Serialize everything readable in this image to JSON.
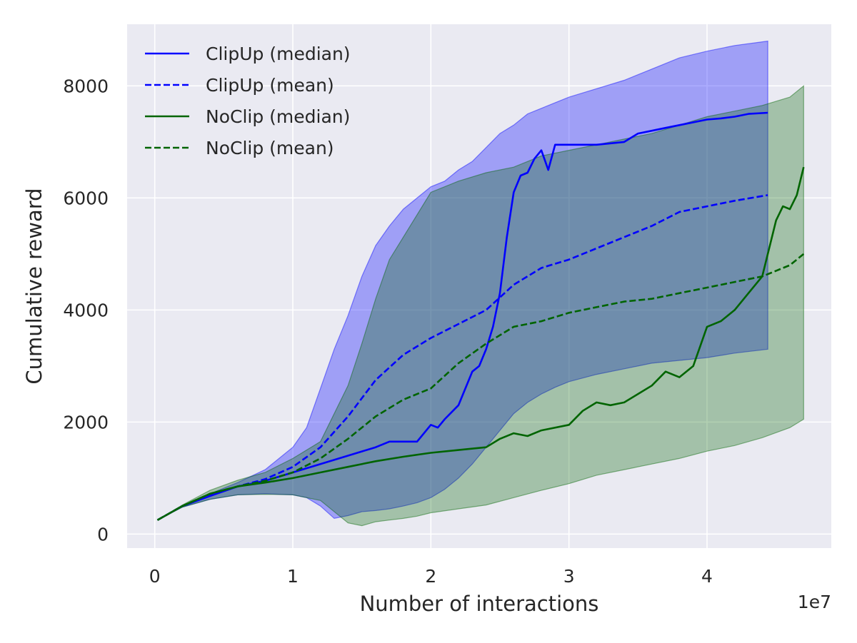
{
  "chart_data": {
    "type": "line",
    "xlabel": "Number of interactions",
    "ylabel": "Cumulative reward",
    "x_offset_label": "1e7",
    "xlim": [
      -0.2,
      4.9
    ],
    "ylim": [
      -250,
      9100
    ],
    "x_ticks": [
      0,
      1,
      2,
      3,
      4
    ],
    "x_tick_labels": [
      "0",
      "1",
      "2",
      "3",
      "4"
    ],
    "y_ticks": [
      0,
      2000,
      4000,
      6000,
      8000
    ],
    "y_tick_labels": [
      "0",
      "2000",
      "4000",
      "6000",
      "8000"
    ],
    "grid": true,
    "legend_position": "top-left",
    "colors": {
      "background": "#eaeaf2",
      "grid": "#ffffff",
      "clipup": "#0000ff",
      "clipup_band": "#0000ff",
      "noclip": "#006400",
      "noclip_band": "#006400"
    },
    "bands": [
      {
        "series": "ClipUp",
        "color": "#0000ff",
        "opacity": 0.32,
        "x": [
          0.02,
          0.2,
          0.4,
          0.6,
          0.8,
          1.0,
          1.1,
          1.2,
          1.3,
          1.4,
          1.5,
          1.6,
          1.7,
          1.8,
          1.9,
          2.0,
          2.1,
          2.2,
          2.3,
          2.4,
          2.5,
          2.6,
          2.7,
          2.8,
          2.9,
          3.0,
          3.2,
          3.4,
          3.6,
          3.8,
          4.0,
          4.2,
          4.44
        ],
        "upper": [
          250,
          480,
          720,
          920,
          1150,
          1550,
          1900,
          2600,
          3300,
          3900,
          4600,
          5150,
          5500,
          5800,
          6000,
          6200,
          6300,
          6500,
          6650,
          6900,
          7150,
          7300,
          7500,
          7600,
          7700,
          7800,
          7950,
          8100,
          8300,
          8500,
          8620,
          8720,
          8800
        ],
        "lower": [
          250,
          480,
          620,
          700,
          720,
          700,
          650,
          500,
          280,
          330,
          400,
          420,
          450,
          500,
          560,
          650,
          800,
          1000,
          1250,
          1550,
          1850,
          2150,
          2350,
          2500,
          2620,
          2720,
          2850,
          2950,
          3050,
          3100,
          3150,
          3230,
          3300
        ]
      },
      {
        "series": "NoClip",
        "color": "#006400",
        "opacity": 0.3,
        "x": [
          0.02,
          0.2,
          0.4,
          0.6,
          0.8,
          1.0,
          1.2,
          1.4,
          1.5,
          1.6,
          1.7,
          1.8,
          1.9,
          2.0,
          2.2,
          2.4,
          2.6,
          2.8,
          3.0,
          3.2,
          3.4,
          3.6,
          3.8,
          4.0,
          4.2,
          4.4,
          4.6,
          4.7
        ],
        "upper": [
          250,
          520,
          780,
          960,
          1100,
          1350,
          1650,
          2650,
          3400,
          4200,
          4900,
          5300,
          5700,
          6100,
          6300,
          6450,
          6550,
          6750,
          6850,
          6950,
          7050,
          7150,
          7300,
          7450,
          7550,
          7650,
          7800,
          8000
        ],
        "lower": [
          250,
          480,
          620,
          700,
          710,
          700,
          600,
          200,
          150,
          220,
          250,
          280,
          320,
          380,
          450,
          520,
          650,
          780,
          900,
          1050,
          1150,
          1250,
          1350,
          1480,
          1580,
          1720,
          1900,
          2050
        ]
      }
    ],
    "series": [
      {
        "name": "ClipUp (median)",
        "color": "#0000ff",
        "dash": "solid",
        "x": [
          0.02,
          0.2,
          0.4,
          0.6,
          0.8,
          1.0,
          1.2,
          1.4,
          1.6,
          1.7,
          1.8,
          1.9,
          2.0,
          2.05,
          2.1,
          2.2,
          2.3,
          2.35,
          2.4,
          2.45,
          2.5,
          2.55,
          2.6,
          2.65,
          2.7,
          2.75,
          2.8,
          2.85,
          2.9,
          2.95,
          3.0,
          3.1,
          3.2,
          3.4,
          3.5,
          3.6,
          3.7,
          3.8,
          4.0,
          4.1,
          4.2,
          4.3,
          4.44
        ],
        "y": [
          250,
          500,
          680,
          850,
          950,
          1100,
          1250,
          1400,
          1550,
          1650,
          1650,
          1650,
          1950,
          1900,
          2050,
          2300,
          2900,
          3000,
          3300,
          3700,
          4300,
          5300,
          6100,
          6400,
          6450,
          6700,
          6850,
          6500,
          6950,
          6950,
          6950,
          6950,
          6950,
          7000,
          7150,
          7200,
          7250,
          7300,
          7400,
          7420,
          7450,
          7500,
          7520
        ]
      },
      {
        "name": "ClipUp (mean)",
        "color": "#0000ff",
        "dash": "dashed",
        "x": [
          0.02,
          0.2,
          0.4,
          0.6,
          0.8,
          1.0,
          1.2,
          1.4,
          1.6,
          1.8,
          2.0,
          2.2,
          2.4,
          2.6,
          2.8,
          3.0,
          3.2,
          3.4,
          3.6,
          3.8,
          4.0,
          4.2,
          4.44
        ],
        "y": [
          250,
          500,
          700,
          850,
          980,
          1200,
          1550,
          2100,
          2750,
          3200,
          3500,
          3750,
          4000,
          4450,
          4750,
          4900,
          5100,
          5300,
          5500,
          5750,
          5850,
          5950,
          6050
        ]
      },
      {
        "name": "NoClip (median)",
        "color": "#006400",
        "dash": "solid",
        "x": [
          0.02,
          0.2,
          0.4,
          0.6,
          0.8,
          1.0,
          1.2,
          1.4,
          1.6,
          1.8,
          2.0,
          2.2,
          2.4,
          2.5,
          2.6,
          2.7,
          2.8,
          3.0,
          3.1,
          3.2,
          3.3,
          3.4,
          3.5,
          3.6,
          3.7,
          3.8,
          3.9,
          4.0,
          4.1,
          4.2,
          4.3,
          4.4,
          4.5,
          4.55,
          4.6,
          4.65,
          4.7
        ],
        "y": [
          250,
          500,
          720,
          850,
          920,
          1000,
          1100,
          1200,
          1300,
          1380,
          1450,
          1500,
          1550,
          1700,
          1800,
          1750,
          1850,
          1950,
          2200,
          2350,
          2300,
          2350,
          2500,
          2650,
          2900,
          2800,
          3000,
          3700,
          3800,
          4000,
          4300,
          4600,
          5600,
          5850,
          5800,
          6050,
          6550
        ]
      },
      {
        "name": "NoClip (mean)",
        "color": "#006400",
        "dash": "dashed",
        "x": [
          0.02,
          0.2,
          0.4,
          0.6,
          0.8,
          1.0,
          1.2,
          1.4,
          1.6,
          1.8,
          2.0,
          2.2,
          2.4,
          2.6,
          2.8,
          3.0,
          3.2,
          3.4,
          3.6,
          3.8,
          4.0,
          4.2,
          4.4,
          4.6,
          4.7
        ],
        "y": [
          250,
          500,
          720,
          850,
          950,
          1100,
          1350,
          1700,
          2100,
          2400,
          2600,
          3050,
          3400,
          3700,
          3800,
          3950,
          4050,
          4150,
          4200,
          4300,
          4400,
          4500,
          4600,
          4800,
          5000
        ]
      }
    ]
  }
}
